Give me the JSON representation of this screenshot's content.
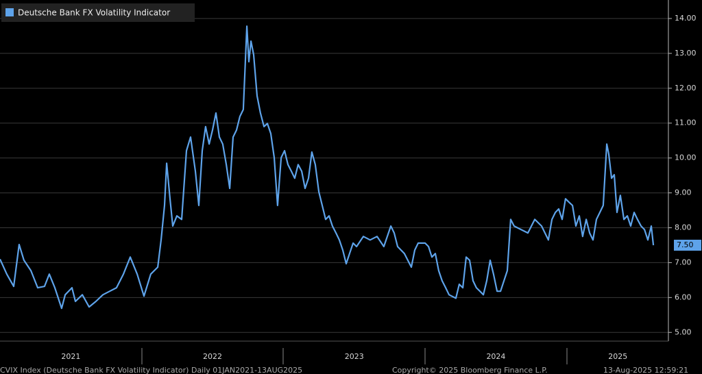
{
  "chart_data": {
    "type": "line",
    "legend": "Deutsche Bank FX Volatility Indicator",
    "x": [
      2021.0,
      2021.048,
      2021.097,
      2021.135,
      2021.169,
      2021.218,
      2021.266,
      2021.314,
      2021.348,
      2021.387,
      2021.435,
      2021.46,
      2021.508,
      2021.532,
      2021.581,
      2021.629,
      2021.677,
      2021.726,
      2021.774,
      2021.822,
      2021.871,
      2021.919,
      2021.968,
      2022.016,
      2022.064,
      2022.113,
      2022.137,
      2022.161,
      2022.176,
      2022.2,
      2022.219,
      2022.248,
      2022.282,
      2022.316,
      2022.345,
      2022.379,
      2022.403,
      2022.427,
      2022.451,
      2022.476,
      2022.5,
      2022.524,
      2022.548,
      2022.572,
      2022.597,
      2022.621,
      2022.645,
      2022.669,
      2022.693,
      2022.717,
      2022.742,
      2022.756,
      2022.771,
      2022.79,
      2022.814,
      2022.838,
      2022.863,
      2022.887,
      2022.911,
      2022.935,
      2022.959,
      2022.984,
      2023.008,
      2023.032,
      2023.056,
      2023.08,
      2023.104,
      2023.129,
      2023.153,
      2023.177,
      2023.201,
      2023.225,
      2023.25,
      2023.274,
      2023.298,
      2023.322,
      2023.346,
      2023.371,
      2023.395,
      2023.419,
      2023.443,
      2023.467,
      2023.492,
      2023.516,
      2023.564,
      2023.612,
      2023.661,
      2023.709,
      2023.758,
      2023.782,
      2023.806,
      2023.854,
      2023.903,
      2023.927,
      2023.951,
      2024.0,
      2024.024,
      2024.048,
      2024.072,
      2024.096,
      2024.12,
      2024.145,
      2024.169,
      2024.217,
      2024.241,
      2024.266,
      2024.29,
      2024.314,
      2024.338,
      2024.362,
      2024.387,
      2024.411,
      2024.435,
      2024.459,
      2024.483,
      2024.508,
      2024.532,
      2024.58,
      2024.604,
      2024.628,
      2024.677,
      2024.725,
      2024.774,
      2024.822,
      2024.87,
      2024.895,
      2024.919,
      2024.943,
      2024.967,
      2024.991,
      2025.016,
      2025.04,
      2025.064,
      2025.088,
      2025.112,
      2025.137,
      2025.161,
      2025.185,
      2025.209,
      2025.233,
      2025.257,
      2025.282,
      2025.296,
      2025.316,
      2025.335,
      2025.354,
      2025.378,
      2025.403,
      2025.427,
      2025.451,
      2025.475,
      2025.499,
      2025.524,
      2025.548,
      2025.572,
      2025.596,
      2025.611
    ],
    "series": [
      {
        "name": "Deutsche Bank FX Volatility Indicator",
        "color": "#5ea3ea",
        "values": [
          7.1,
          6.67,
          6.32,
          7.52,
          7.07,
          6.77,
          6.28,
          6.32,
          6.67,
          6.28,
          5.69,
          6.08,
          6.28,
          5.89,
          6.08,
          5.73,
          5.89,
          6.08,
          6.18,
          6.28,
          6.67,
          7.16,
          6.67,
          6.04,
          6.67,
          6.87,
          7.65,
          8.64,
          9.85,
          8.83,
          8.05,
          8.34,
          8.24,
          10.21,
          10.6,
          9.62,
          8.64,
          10.21,
          10.9,
          10.4,
          10.8,
          11.29,
          10.6,
          10.4,
          9.81,
          9.13,
          10.6,
          10.8,
          11.19,
          11.39,
          13.78,
          12.76,
          13.35,
          12.96,
          11.78,
          11.29,
          10.9,
          10.99,
          10.7,
          10.01,
          8.64,
          10.01,
          10.21,
          9.81,
          9.62,
          9.42,
          9.81,
          9.62,
          9.13,
          9.42,
          10.17,
          9.81,
          9.03,
          8.64,
          8.24,
          8.34,
          8.05,
          7.85,
          7.65,
          7.36,
          6.97,
          7.26,
          7.56,
          7.46,
          7.75,
          7.65,
          7.75,
          7.46,
          8.05,
          7.85,
          7.46,
          7.26,
          6.87,
          7.36,
          7.56,
          7.56,
          7.46,
          7.16,
          7.26,
          6.77,
          6.48,
          6.28,
          6.08,
          5.98,
          6.38,
          6.28,
          7.16,
          7.07,
          6.48,
          6.28,
          6.18,
          6.08,
          6.48,
          7.07,
          6.67,
          6.18,
          6.18,
          6.77,
          8.24,
          8.05,
          7.95,
          7.85,
          8.24,
          8.05,
          7.65,
          8.24,
          8.44,
          8.54,
          8.24,
          8.83,
          8.73,
          8.64,
          8.05,
          8.34,
          7.75,
          8.24,
          7.85,
          7.65,
          8.24,
          8.44,
          8.64,
          10.4,
          10.11,
          9.42,
          9.52,
          8.44,
          8.93,
          8.24,
          8.34,
          8.05,
          8.44,
          8.24,
          8.05,
          7.95,
          7.65,
          8.05,
          7.5
        ]
      }
    ],
    "last_value": {
      "value": 7.5,
      "label": "7.50"
    },
    "xlim": [
      2021,
      2025.717
    ],
    "ylim": [
      4.75,
      14.53
    ],
    "yticks": [
      {
        "value": 5,
        "label": "5.00"
      },
      {
        "value": 6,
        "label": "6.00"
      },
      {
        "value": 7,
        "label": "7.00"
      },
      {
        "value": 8,
        "label": "8.00"
      },
      {
        "value": 9,
        "label": "9.00"
      },
      {
        "value": 10,
        "label": "10.00"
      },
      {
        "value": 11,
        "label": "11.00"
      },
      {
        "value": 12,
        "label": "12.00"
      },
      {
        "value": 13,
        "label": "13.00"
      },
      {
        "value": 14,
        "label": "14.00"
      }
    ],
    "xticks": [
      {
        "value": 2021.5,
        "label": "2021"
      },
      {
        "value": 2022.5,
        "label": "2022"
      },
      {
        "value": 2023.5,
        "label": "2023"
      },
      {
        "value": 2024.5,
        "label": "2024"
      },
      {
        "value": 2025.36,
        "label": "2025"
      }
    ],
    "grid": true,
    "footer": {
      "source": "CVIX Index (Deutsche Bank FX Volatility Indicator)  Daily 01JAN2021-13AUG2025",
      "copyright": "Copyright© 2025 Bloomberg Finance L.P.",
      "timestamp": "13-Aug-2025 12:59:21"
    }
  }
}
